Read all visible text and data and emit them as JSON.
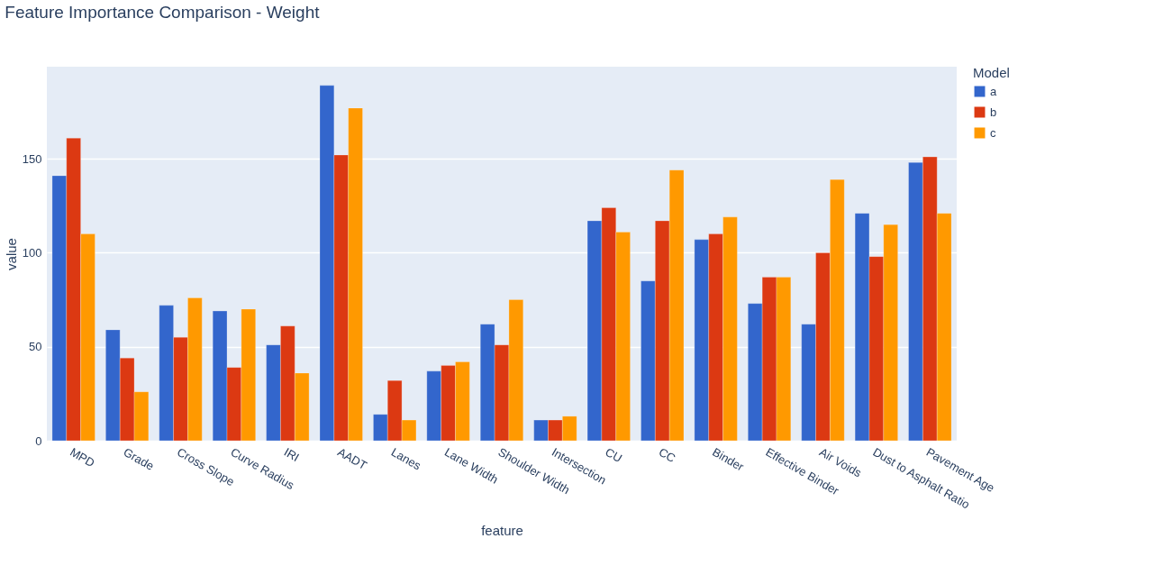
{
  "chart_data": {
    "type": "bar",
    "title": "Feature Importance Comparison - Weight",
    "xlabel": "feature",
    "ylabel": "value",
    "legend_title": "Model",
    "categories": [
      "MPD",
      "Grade",
      "Cross Slope",
      "Curve Radius",
      "IRI",
      "AADT",
      "Lanes",
      "Lane Width",
      "Shoulder Width",
      "Intersection",
      "CU",
      "CC",
      "Binder",
      "Effective Binder",
      "Air Voids",
      "Dust to Asphalt Ratio",
      "Pavement Age"
    ],
    "series": [
      {
        "name": "a",
        "color": "#3366cc",
        "values": [
          141,
          59,
          72,
          69,
          51,
          189,
          14,
          37,
          62,
          11,
          117,
          85,
          107,
          73,
          62,
          121,
          148
        ]
      },
      {
        "name": "b",
        "color": "#dc3912",
        "values": [
          161,
          44,
          55,
          39,
          61,
          152,
          32,
          40,
          51,
          11,
          124,
          117,
          110,
          87,
          100,
          98,
          151
        ]
      },
      {
        "name": "c",
        "color": "#ff9900",
        "values": [
          110,
          26,
          76,
          70,
          36,
          177,
          11,
          42,
          75,
          13,
          111,
          144,
          119,
          87,
          139,
          115,
          121
        ]
      }
    ],
    "ylim": [
      0,
      199
    ],
    "yticks": [
      0,
      50,
      100,
      150
    ],
    "grid": "y",
    "legend": "top right"
  }
}
